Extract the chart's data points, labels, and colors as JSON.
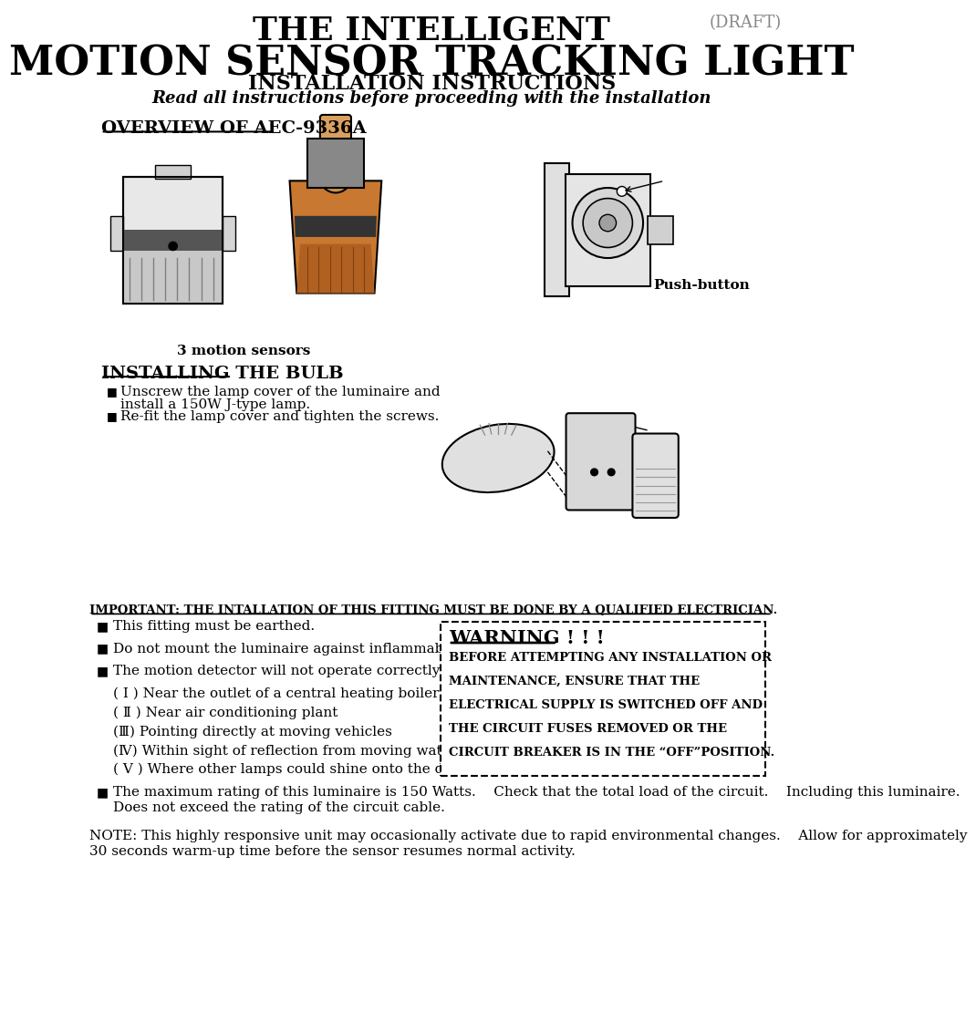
{
  "title1": "THE INTELLIGENT",
  "title2": "MOTION SENSOR TRACKING LIGHT",
  "title3": "INSTALLATION INSTRUCTIONS",
  "title4": "Read all instructions before proceeding with the installation",
  "draft": "(DRAFT)",
  "overview_title": "OVERVIEW OF AEC-9336A",
  "label_3motion": "3 motion sensors",
  "label_pushbutton": "Push-button",
  "installing_title": "INSTALLING THE BULB",
  "installing_bullet1": "Unscrew the lamp cover of the luminaire and\n     install a 150W J-type lamp.",
  "installing_bullet2": "Re-fit the lamp cover and tighten the screws.",
  "important_line": "IMPORTANT: THE INTALLATION OF THIS FITTING MUST BE DONE BY A QUALIFIED ELECTRICIAN.",
  "bullets": [
    "This fitting must be earthed.",
    "Do not mount the luminaire against inflammable surfaces.",
    "The motion detector will not operate correctly if it is installed:"
  ],
  "sub_bullets": [
    "( Ⅰ ) Near the outlet of a central heating boiler",
    "( Ⅱ ) Near air conditioning plant",
    "(Ⅲ) Pointing directly at moving vehicles",
    "(Ⅳ) Within sight of reflection from moving water",
    "( Ⅴ ) Where other lamps could shine onto the detector"
  ],
  "bullet_last1": "The maximum rating of this luminaire is 150 Watts.    Check that the total load of the circuit.    Including this luminaire.",
  "bullet_last2": "Does not exceed the rating of the circuit cable.",
  "note_text1": "NOTE: This highly responsive unit may occasionally activate due to rapid environmental changes.    Allow for approximately",
  "note_text2": "30 seconds warm-up time before the sensor resumes normal activity.",
  "warning_title": "WARNING ! ! !",
  "warning_lines": [
    "BEFORE ATTEMPTING ANY INSTALLATION OR",
    "MAINTENANCE, ENSURE THAT THE",
    "ELECTRICAL SUPPLY IS SWITCHED OFF AND",
    "THE CIRCUIT FUSES REMOVED OR THE",
    "CIRCUIT BREAKER IS IN THE “OFF”POSITION."
  ],
  "bg_color": "#ffffff",
  "text_color": "#000000"
}
